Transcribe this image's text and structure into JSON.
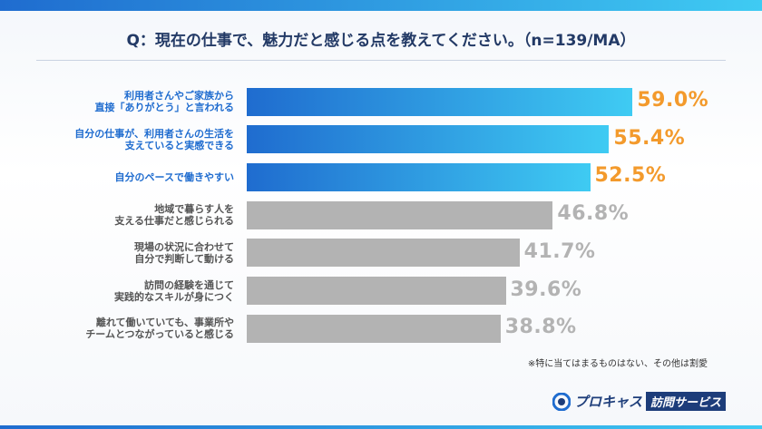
{
  "chart_data": {
    "type": "bar",
    "orientation": "horizontal",
    "title": "Q：現在の仕事で、魅力だと感じる点を教えてください。（n=139/MA）",
    "categories": [
      "利用者さんやご家族から\n直接「ありがとう」と言われる",
      "自分の仕事が、利用者さんの生活を\n支えていると実感できる",
      "自分のペースで働きやすい",
      "地域で暮らす人を\n支える仕事だと感じられる",
      "現場の状況に合わせて\n自分で判断して動ける",
      "訪問の経験を通じて\n実践的なスキルが身につく",
      "離れて働いていても、事業所や\nチームとつながっていると感じる"
    ],
    "values": [
      59.0,
      55.4,
      52.5,
      46.8,
      41.7,
      39.6,
      38.8
    ],
    "value_labels": [
      "59.0%",
      "55.4%",
      "52.5%",
      "46.8%",
      "41.7%",
      "39.6%",
      "38.8%"
    ],
    "colors": [
      [
        "#1f6ccf",
        "#3fcbf3"
      ],
      [
        "#1f6ccf",
        "#3fcbf3"
      ],
      [
        "#1f6ccf",
        "#3fcbf3"
      ],
      [
        "#b3b3b3",
        "#b3b3b3"
      ],
      [
        "#b3b3b3",
        "#b3b3b3"
      ],
      [
        "#b3b3b3",
        "#b3b3b3"
      ],
      [
        "#b3b3b3",
        "#b3b3b3"
      ]
    ],
    "label_colors": [
      "#1f6ccf",
      "#1f6ccf",
      "#1f6ccf",
      "#555555",
      "#555555",
      "#555555",
      "#555555"
    ],
    "value_label_colors": [
      "#f39a2c",
      "#f39a2c",
      "#f39a2c",
      "#b3b3b3",
      "#b3b3b3",
      "#b3b3b3",
      "#b3b3b3"
    ],
    "xlim": [
      0,
      62
    ],
    "note": "※特に当てはまるものはない、その他は割愛",
    "brand": [
      "プロキャス",
      "訪問サービス"
    ]
  }
}
